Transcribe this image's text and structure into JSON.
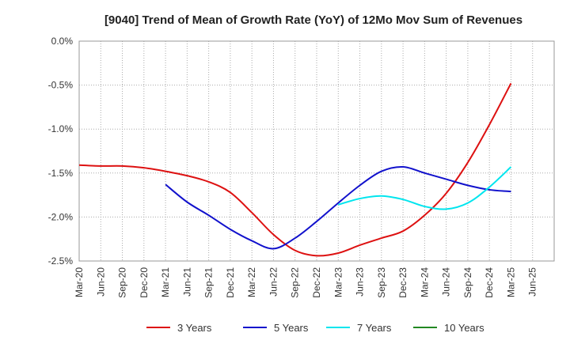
{
  "chart_data": {
    "type": "line",
    "title": "[9040]  Trend of Mean of Growth Rate (YoY) of 12Mo Mov Sum of Revenues",
    "xlabel": "",
    "ylabel": "",
    "ylim": [
      -2.5,
      0.0
    ],
    "y_ticks": [
      0.0,
      -0.5,
      -1.0,
      -1.5,
      -2.0,
      -2.5
    ],
    "y_tick_labels": [
      "0.0%",
      "-0.5%",
      "-1.0%",
      "-1.5%",
      "-2.0%",
      "-2.5%"
    ],
    "x_tick_labels": [
      "Mar-20",
      "Jun-20",
      "Sep-20",
      "Dec-20",
      "Mar-21",
      "Jun-21",
      "Sep-21",
      "Dec-21",
      "Mar-22",
      "Jun-22",
      "Sep-22",
      "Dec-22",
      "Mar-23",
      "Jun-23",
      "Sep-23",
      "Dec-23",
      "Mar-24",
      "Jun-24",
      "Sep-24",
      "Dec-24",
      "Mar-25",
      "Jun-25"
    ],
    "grid": true,
    "legend_position": "bottom",
    "series": [
      {
        "name": "3 Years",
        "color": "#dd1111",
        "x": [
          0,
          1,
          2,
          3,
          4,
          5,
          6,
          7,
          8,
          9,
          10,
          11,
          12,
          13,
          14,
          15,
          16,
          17,
          18,
          19,
          20
        ],
        "values": [
          -1.41,
          -1.42,
          -1.42,
          -1.44,
          -1.48,
          -1.53,
          -1.6,
          -1.72,
          -1.95,
          -2.2,
          -2.38,
          -2.44,
          -2.41,
          -2.32,
          -2.24,
          -2.16,
          -1.98,
          -1.73,
          -1.38,
          -0.95,
          -0.48
        ]
      },
      {
        "name": "5 Years",
        "color": "#1111cc",
        "x": [
          4,
          5,
          6,
          7,
          8,
          9,
          10,
          11,
          12,
          13,
          14,
          15,
          16,
          17,
          18,
          19,
          20
        ],
        "values": [
          -1.63,
          -1.83,
          -1.98,
          -2.14,
          -2.27,
          -2.36,
          -2.24,
          -2.05,
          -1.84,
          -1.64,
          -1.48,
          -1.43,
          -1.5,
          -1.57,
          -1.64,
          -1.69,
          -1.71
        ]
      },
      {
        "name": "7 Years",
        "color": "#00e5ee",
        "x": [
          12,
          13,
          14,
          15,
          16,
          17,
          18,
          19,
          20
        ],
        "values": [
          -1.86,
          -1.79,
          -1.76,
          -1.8,
          -1.88,
          -1.91,
          -1.84,
          -1.66,
          -1.43
        ]
      },
      {
        "name": "10 Years",
        "color": "#228822",
        "x": [],
        "values": []
      }
    ]
  }
}
